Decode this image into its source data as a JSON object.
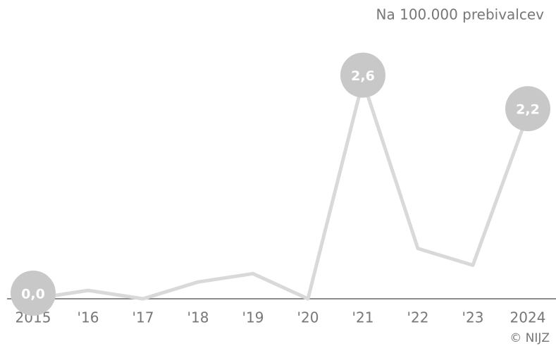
{
  "chart_data": {
    "type": "line",
    "subtitle": "Na 100.000 prebivalcev",
    "source": "© NIJZ",
    "categories": [
      "2015",
      "'16",
      "'17",
      "'18",
      "'19",
      "'20",
      "'21",
      "'22",
      "'23",
      "2024"
    ],
    "values": [
      0.0,
      0.1,
      0.0,
      0.2,
      0.3,
      0.0,
      2.6,
      0.6,
      0.4,
      2.2
    ],
    "value_labels": [
      "0,0",
      null,
      null,
      null,
      null,
      null,
      "2,6",
      null,
      null,
      "2,2"
    ],
    "color": "#d9d9d9",
    "marker_color": "#c8c8c8",
    "ylim": [
      0,
      3
    ]
  }
}
